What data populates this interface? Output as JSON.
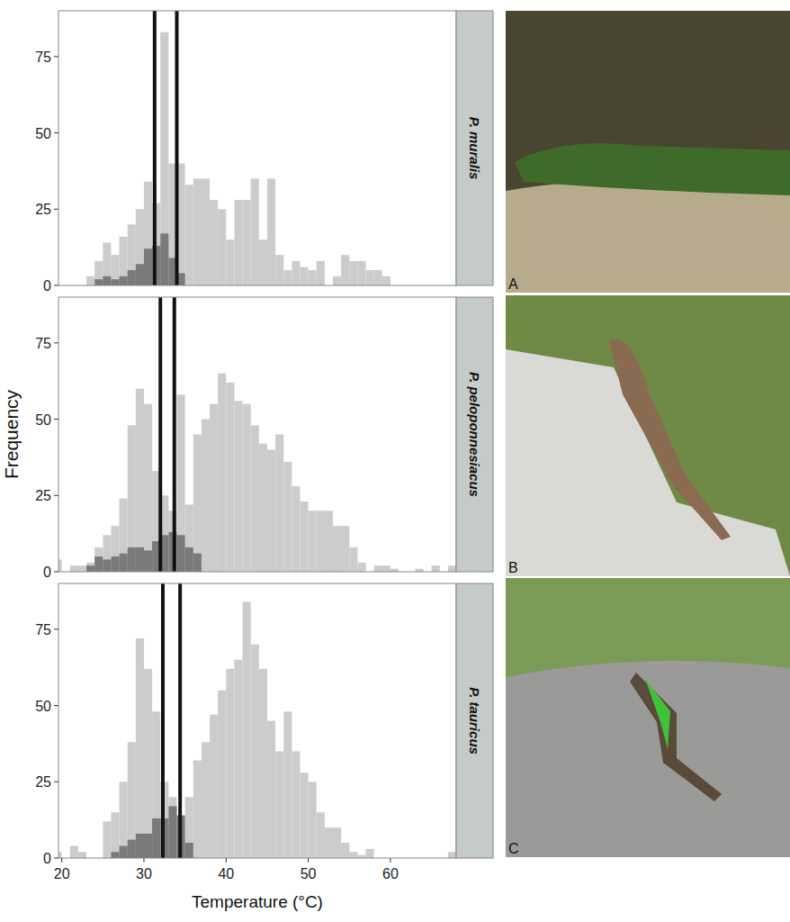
{
  "chart_data": [
    {
      "type": "histogram",
      "title": "P. muralis",
      "annotation": "A",
      "tick_labels": "y",
      "bins": [
        19,
        20,
        21,
        22,
        23,
        24,
        25,
        26,
        27,
        28,
        29,
        30,
        31,
        32,
        33,
        34,
        35,
        36,
        37,
        38,
        39,
        40,
        41,
        42,
        43,
        44,
        45,
        46,
        47,
        48,
        49,
        50,
        51,
        52,
        53,
        54,
        55,
        56,
        57,
        58,
        59,
        60,
        61,
        62,
        63,
        64,
        65,
        66,
        67,
        68
      ],
      "series": [
        {
          "color": "#cccccc",
          "values": [
            0,
            0,
            0,
            0,
            3,
            8,
            14,
            10,
            16,
            20,
            25,
            34,
            27,
            83,
            40,
            40,
            33,
            35,
            35,
            28,
            25,
            15,
            28,
            28,
            35,
            15,
            35,
            10,
            5,
            8,
            6,
            5,
            8,
            0,
            3,
            10,
            8,
            8,
            5,
            5,
            3,
            0,
            0,
            0,
            0,
            0,
            0,
            0,
            0
          ]
        },
        {
          "color": "#7a7a7a",
          "values": [
            0,
            0,
            0,
            0,
            0,
            2,
            3,
            2,
            3,
            5,
            7,
            12,
            13,
            17,
            9,
            4,
            0,
            0,
            0,
            0,
            0,
            0,
            0,
            0,
            0,
            0,
            0,
            0,
            0,
            0,
            0,
            0,
            0,
            0,
            0,
            0,
            0,
            0,
            0,
            0,
            0,
            0,
            0,
            0,
            0,
            0,
            0,
            0,
            0
          ]
        }
      ],
      "reference_lines": [
        31.3,
        34.0
      ],
      "xlim": [
        19.6,
        68
      ],
      "xticks": [
        20,
        30,
        40,
        50,
        60
      ],
      "ylim": [
        0,
        90
      ],
      "yticks": [
        0,
        25,
        50,
        75
      ]
    },
    {
      "type": "histogram",
      "title": "P. peloponnesiacus",
      "annotation": "B",
      "tick_labels": "y",
      "y_label": "Frequency",
      "bins": [
        19,
        20,
        21,
        22,
        23,
        24,
        25,
        26,
        27,
        28,
        29,
        30,
        31,
        32,
        33,
        34,
        35,
        36,
        37,
        38,
        39,
        40,
        41,
        42,
        43,
        44,
        45,
        46,
        47,
        48,
        49,
        50,
        51,
        52,
        53,
        54,
        55,
        56,
        57,
        58,
        59,
        60,
        61,
        62,
        63,
        64,
        65,
        66,
        67,
        68
      ],
      "series": [
        {
          "color": "#cccccc",
          "values": [
            4,
            0,
            2,
            2,
            3,
            8,
            12,
            15,
            24,
            48,
            60,
            55,
            33,
            25,
            20,
            58,
            22,
            45,
            50,
            55,
            65,
            62,
            56,
            55,
            48,
            42,
            40,
            45,
            36,
            28,
            23,
            20,
            20,
            20,
            15,
            15,
            8,
            3,
            0,
            2,
            2,
            1,
            0,
            0,
            1,
            0,
            2,
            0,
            2
          ]
        },
        {
          "color": "#7a7a7a",
          "values": [
            0,
            0,
            0,
            0,
            2,
            5,
            4,
            5,
            6,
            8,
            8,
            7,
            10,
            12,
            13,
            12,
            8,
            6,
            0,
            0,
            0,
            0,
            0,
            0,
            0,
            0,
            0,
            0,
            0,
            0,
            0,
            0,
            0,
            0,
            0,
            0,
            0,
            0,
            0,
            0,
            0,
            0,
            0,
            0,
            0,
            0,
            0,
            0,
            0
          ]
        }
      ],
      "reference_lines": [
        32.0,
        33.7
      ],
      "xlim": [
        19.6,
        68
      ],
      "xticks": [
        20,
        30,
        40,
        50,
        60
      ],
      "ylim": [
        0,
        90
      ],
      "yticks": [
        0,
        25,
        50,
        75
      ]
    },
    {
      "type": "histogram",
      "title": "P. tauricus",
      "annotation": "C",
      "x_label": "Temperature (°C)",
      "bins": [
        19,
        20,
        21,
        22,
        23,
        24,
        25,
        26,
        27,
        28,
        29,
        30,
        31,
        32,
        33,
        34,
        35,
        36,
        37,
        38,
        39,
        40,
        41,
        42,
        43,
        44,
        45,
        46,
        47,
        48,
        49,
        50,
        51,
        52,
        53,
        54,
        55,
        56,
        57,
        58,
        59,
        60,
        61,
        62,
        63,
        64,
        65,
        66,
        67,
        68
      ],
      "series": [
        {
          "color": "#cccccc",
          "values": [
            2,
            0,
            4,
            2,
            0,
            0,
            12,
            15,
            25,
            38,
            72,
            62,
            48,
            25,
            20,
            12,
            20,
            32,
            38,
            47,
            55,
            62,
            65,
            84,
            70,
            62,
            45,
            35,
            48,
            35,
            28,
            25,
            15,
            10,
            10,
            5,
            2,
            1,
            3,
            0,
            0,
            0,
            0,
            0,
            0,
            0,
            0,
            0,
            2
          ]
        },
        {
          "color": "#7a7a7a",
          "values": [
            0,
            0,
            0,
            0,
            0,
            0,
            0,
            2,
            4,
            6,
            8,
            8,
            13,
            13,
            17,
            14,
            5,
            0,
            0,
            0,
            0,
            0,
            0,
            0,
            0,
            0,
            0,
            0,
            0,
            0,
            0,
            0,
            0,
            0,
            0,
            0,
            0,
            0,
            0,
            0,
            0,
            0,
            0,
            0,
            0,
            0,
            0,
            0,
            0
          ]
        }
      ],
      "reference_lines": [
        32.3,
        34.4
      ],
      "xlim": [
        19.6,
        68
      ],
      "xticks": [
        20,
        30,
        40,
        50,
        60
      ],
      "ylim": [
        0,
        90
      ],
      "yticks": [
        0,
        25,
        50,
        75
      ]
    }
  ]
}
